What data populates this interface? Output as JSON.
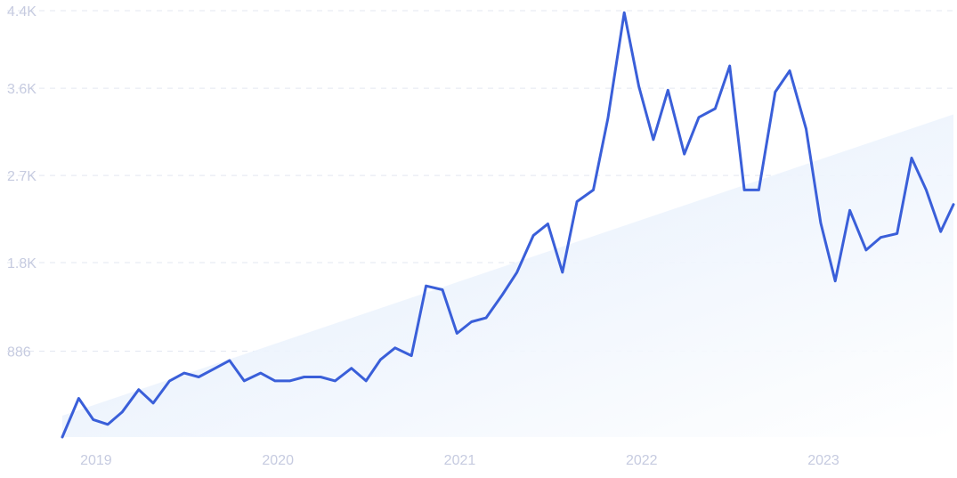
{
  "chart_data": {
    "type": "line",
    "title": "",
    "xlabel": "",
    "ylabel": "",
    "grid": true,
    "legend": "none",
    "x_tick_labels": [
      "2019",
      "2020",
      "2021",
      "2022",
      "2023"
    ],
    "x_tick_years": [
      2019.0,
      2020.0,
      2021.0,
      2022.0,
      2023.0
    ],
    "y_tick_labels": [
      "886",
      "1.8K",
      "2.7K",
      "3.6K",
      "4.4K"
    ],
    "y_tick_values": [
      886,
      1800,
      2700,
      3600,
      4400
    ],
    "xlim": [
      2018.79,
      2023.69
    ],
    "ylim": [
      0,
      4400
    ],
    "colors": {
      "line": "#3a5fd9",
      "trend_fill_start": "#dce9fb",
      "trend_fill_end": "#ffffff"
    },
    "trend": {
      "x": [
        2018.79,
        2023.69
      ],
      "y": [
        220,
        3330
      ]
    },
    "series": [
      {
        "x": [
          2018.79,
          2018.88,
          2018.96,
          2019.04,
          2019.12,
          2019.21,
          2019.29,
          2019.38,
          2019.46,
          2019.54,
          2019.62,
          2019.71,
          2019.79,
          2019.88,
          2019.96,
          2020.04,
          2020.12,
          2020.21,
          2020.29,
          2020.38,
          2020.46,
          2020.54,
          2020.62,
          2020.71,
          2020.79,
          2020.88,
          2020.96,
          2021.04,
          2021.12,
          2021.21,
          2021.29,
          2021.38,
          2021.46,
          2021.54,
          2021.62,
          2021.71,
          2021.79,
          2021.88,
          2021.96,
          2022.04,
          2022.12,
          2022.21,
          2022.29,
          2022.38,
          2022.46,
          2022.54,
          2022.62,
          2022.71,
          2022.79,
          2022.88,
          2022.96,
          2023.04,
          2023.12,
          2023.21,
          2023.29,
          2023.38,
          2023.46,
          2023.54,
          2023.62,
          2023.69
        ],
        "y": [
          0,
          400,
          180,
          130,
          260,
          490,
          350,
          580,
          660,
          620,
          700,
          790,
          580,
          660,
          580,
          580,
          620,
          620,
          580,
          710,
          580,
          800,
          920,
          840,
          1560,
          1520,
          1070,
          1190,
          1230,
          1470,
          1700,
          2080,
          2200,
          1700,
          2430,
          2550,
          3290,
          4380,
          3620,
          3070,
          3580,
          2920,
          3300,
          3390,
          3830,
          2550,
          2550,
          3560,
          3780,
          3180,
          2210,
          1610,
          2340,
          1930,
          2060,
          2100,
          2880,
          2550,
          2120,
          2400
        ]
      }
    ]
  }
}
